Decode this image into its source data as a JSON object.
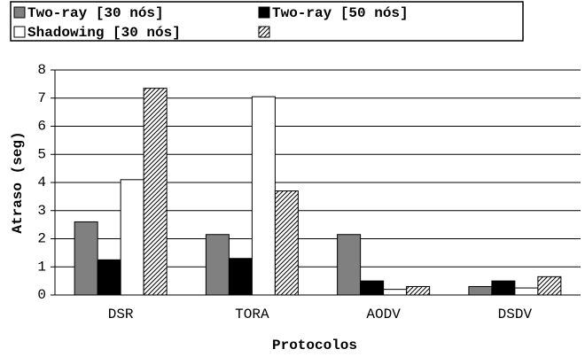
{
  "chart_data": {
    "type": "bar",
    "xlabel": "Protocolos",
    "ylabel": "Atraso (seg)",
    "categories": [
      "DSR",
      "TORA",
      "AODV",
      "DSDV"
    ],
    "series": [
      {
        "name": "Two-ray [30 nós]",
        "color": "#808080",
        "values": [
          2.6,
          2.15,
          2.15,
          0.3
        ]
      },
      {
        "name": "Two-ray [50 nós]",
        "color": "#000000",
        "values": [
          1.25,
          1.3,
          0.5,
          0.5
        ]
      },
      {
        "name": "Shadowing [30 nós]",
        "color": "#ffffff",
        "values": [
          4.1,
          7.05,
          0.2,
          0.25
        ]
      },
      {
        "color": "#ffffff",
        "hatch": true,
        "values": [
          7.35,
          3.7,
          0.3,
          0.65
        ]
      }
    ],
    "ylim": [
      0,
      8
    ],
    "yticks": [
      0,
      1,
      2,
      3,
      4,
      5,
      6,
      7,
      8
    ],
    "grid": true
  }
}
